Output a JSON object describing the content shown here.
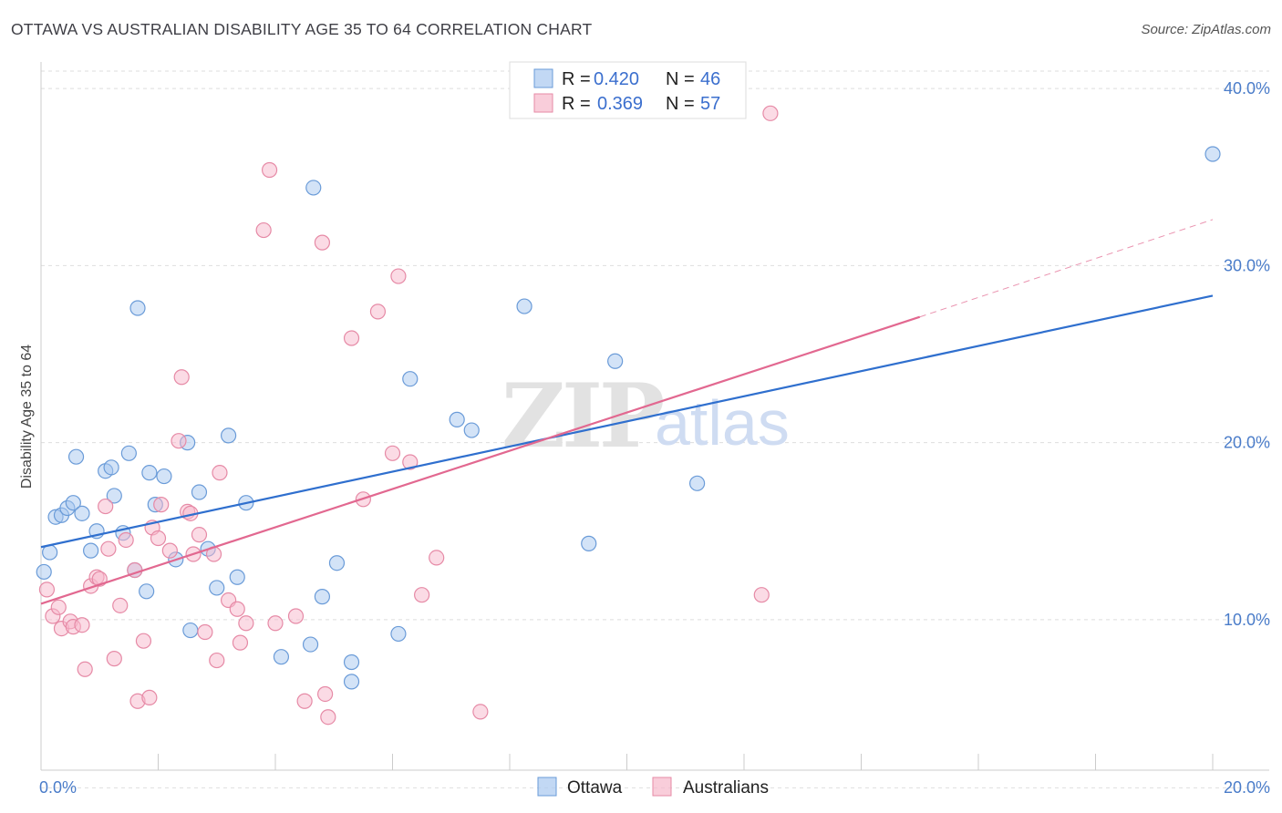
{
  "header": {
    "title": "OTTAWA VS AUSTRALIAN DISABILITY AGE 35 TO 64 CORRELATION CHART",
    "source": "Source: ZipAtlas.com"
  },
  "watermark": {
    "zip": "ZIP",
    "atlas": "atlas"
  },
  "legend_box": {
    "rows": [
      {
        "r_label": "R =",
        "r_value": "0.420",
        "n_label": "N =",
        "n_value": "46",
        "color": "#a8c8f0",
        "stroke": "#6a9bd8"
      },
      {
        "r_label": "R =",
        "r_value": "0.369",
        "n_label": "N =",
        "n_value": "57",
        "color": "#f7b8cb",
        "stroke": "#e68aa6"
      }
    ]
  },
  "bottom_legend": {
    "items": [
      {
        "label": "Ottawa",
        "color": "#a8c8f0",
        "stroke": "#6a9bd8"
      },
      {
        "label": "Australians",
        "color": "#f7b8cb",
        "stroke": "#e68aa6"
      }
    ]
  },
  "chart_data": {
    "type": "scatter",
    "title": "OTTAWA VS AUSTRALIAN DISABILITY AGE 35 TO 64 CORRELATION CHART",
    "xlabel": "",
    "ylabel": "Disability Age 35 to 64",
    "xlim": [
      0,
      20
    ],
    "ylim": [
      1.5,
      41.5
    ],
    "x_tick_labels": [
      "0.0%",
      "20.0%"
    ],
    "y_ticks": [
      10,
      20,
      30,
      40
    ],
    "y_tick_labels": [
      "10.0%",
      "20.0%",
      "30.0%",
      "40.0%"
    ],
    "grid": true,
    "legend_position": "top-center",
    "series": [
      {
        "name": "Ottawa",
        "color": "#6a9bd8",
        "fill": "#a8c8f0",
        "line_color": "#2f6fce",
        "trend": {
          "x": [
            0,
            20
          ],
          "y": [
            14.1,
            28.3
          ]
        },
        "points": [
          [
            0.05,
            12.7
          ],
          [
            0.15,
            13.8
          ],
          [
            0.25,
            15.8
          ],
          [
            0.35,
            15.9
          ],
          [
            0.45,
            16.3
          ],
          [
            0.55,
            16.6
          ],
          [
            0.6,
            19.2
          ],
          [
            0.7,
            16.0
          ],
          [
            0.85,
            13.9
          ],
          [
            0.95,
            15.0
          ],
          [
            1.1,
            18.4
          ],
          [
            1.2,
            18.6
          ],
          [
            1.25,
            17.0
          ],
          [
            1.4,
            14.9
          ],
          [
            1.5,
            19.4
          ],
          [
            1.6,
            12.8
          ],
          [
            1.65,
            27.6
          ],
          [
            1.8,
            11.6
          ],
          [
            1.85,
            18.3
          ],
          [
            1.95,
            16.5
          ],
          [
            2.1,
            18.1
          ],
          [
            2.3,
            13.4
          ],
          [
            2.5,
            20.0
          ],
          [
            2.55,
            9.4
          ],
          [
            2.7,
            17.2
          ],
          [
            2.85,
            14.0
          ],
          [
            3.0,
            11.8
          ],
          [
            3.2,
            20.4
          ],
          [
            3.35,
            12.4
          ],
          [
            3.5,
            16.6
          ],
          [
            4.1,
            7.9
          ],
          [
            4.6,
            8.6
          ],
          [
            4.65,
            34.4
          ],
          [
            4.8,
            11.3
          ],
          [
            5.05,
            13.2
          ],
          [
            5.3,
            7.6
          ],
          [
            5.3,
            6.5
          ],
          [
            6.1,
            9.2
          ],
          [
            6.3,
            23.6
          ],
          [
            7.1,
            21.3
          ],
          [
            7.35,
            20.7
          ],
          [
            8.25,
            27.7
          ],
          [
            9.35,
            14.3
          ],
          [
            9.8,
            24.6
          ],
          [
            11.2,
            17.7
          ],
          [
            20.0,
            36.3
          ]
        ]
      },
      {
        "name": "Australians",
        "color": "#e68aa6",
        "fill": "#f7b8cb",
        "line_color": "#e26890",
        "trend": {
          "x": [
            0,
            15
          ],
          "y": [
            10.9,
            27.1
          ]
        },
        "trend_dashed": {
          "x": [
            15,
            20
          ],
          "y": [
            27.1,
            32.6
          ]
        },
        "points": [
          [
            0.1,
            11.7
          ],
          [
            0.2,
            10.2
          ],
          [
            0.3,
            10.7
          ],
          [
            0.35,
            9.5
          ],
          [
            0.5,
            9.9
          ],
          [
            0.55,
            9.6
          ],
          [
            0.7,
            9.7
          ],
          [
            0.75,
            7.2
          ],
          [
            0.85,
            11.9
          ],
          [
            0.95,
            12.4
          ],
          [
            1.0,
            12.3
          ],
          [
            1.1,
            16.4
          ],
          [
            1.15,
            14.0
          ],
          [
            1.25,
            7.8
          ],
          [
            1.35,
            10.8
          ],
          [
            1.45,
            14.5
          ],
          [
            1.6,
            12.8
          ],
          [
            1.65,
            5.4
          ],
          [
            1.75,
            8.8
          ],
          [
            1.85,
            5.6
          ],
          [
            1.9,
            15.2
          ],
          [
            2.0,
            14.6
          ],
          [
            2.05,
            16.5
          ],
          [
            2.2,
            13.9
          ],
          [
            2.35,
            20.1
          ],
          [
            2.4,
            23.7
          ],
          [
            2.5,
            16.1
          ],
          [
            2.55,
            16.0
          ],
          [
            2.6,
            13.7
          ],
          [
            2.7,
            14.8
          ],
          [
            2.8,
            9.3
          ],
          [
            2.95,
            13.7
          ],
          [
            3.0,
            7.7
          ],
          [
            3.05,
            18.3
          ],
          [
            3.2,
            11.1
          ],
          [
            3.35,
            10.6
          ],
          [
            3.4,
            8.7
          ],
          [
            3.5,
            9.8
          ],
          [
            3.8,
            32.0
          ],
          [
            3.9,
            35.4
          ],
          [
            4.0,
            9.8
          ],
          [
            4.35,
            10.2
          ],
          [
            4.5,
            5.4
          ],
          [
            4.8,
            31.3
          ],
          [
            4.85,
            5.8
          ],
          [
            4.9,
            4.5
          ],
          [
            5.3,
            25.9
          ],
          [
            5.5,
            16.8
          ],
          [
            5.75,
            27.4
          ],
          [
            6.0,
            19.4
          ],
          [
            6.1,
            29.4
          ],
          [
            6.3,
            18.9
          ],
          [
            6.5,
            11.4
          ],
          [
            6.75,
            13.5
          ],
          [
            7.5,
            4.8
          ],
          [
            12.3,
            11.4
          ],
          [
            12.45,
            38.6
          ]
        ]
      }
    ]
  }
}
